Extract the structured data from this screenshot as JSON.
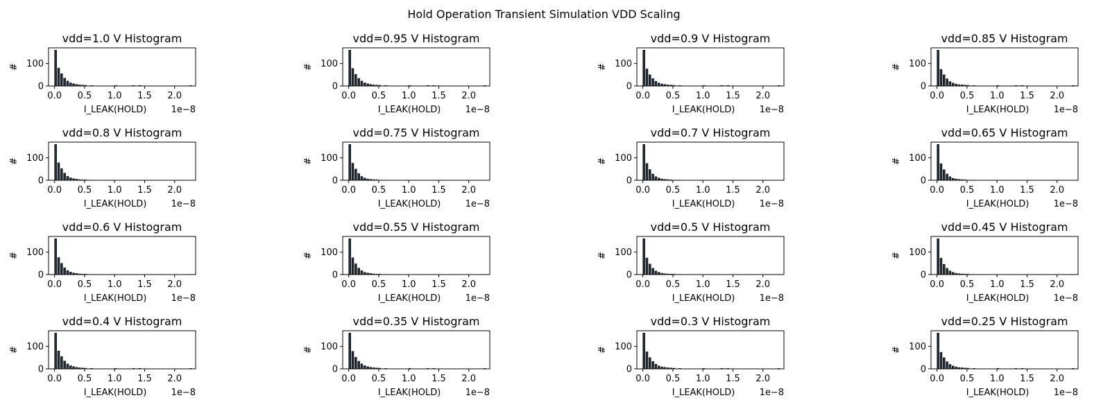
{
  "figure": {
    "title": "Hold Operation Transient Simulation VDD Scaling"
  },
  "colors": {
    "bar_fill": "#1f2a36",
    "bar_edge": "#000000",
    "axes": "#000000",
    "background": "#ffffff"
  },
  "chart_data": {
    "type": "bar",
    "histogram_bins_x": [
      0.0,
      0.05,
      0.1,
      0.15,
      0.2,
      0.25,
      0.3,
      0.35,
      0.4,
      0.45,
      0.5,
      0.6,
      1.0,
      1.3,
      1.4,
      2.25
    ],
    "xlabel": "I_LEAK(HOLD)",
    "ylabel": "#",
    "x_offset_label": "1e−8",
    "x_ticks": [
      "0.0",
      "0.5",
      "1.0",
      "1.5",
      "2.0"
    ],
    "x_tick_values": [
      0.0,
      0.5,
      1.0,
      1.5,
      2.0
    ],
    "y_ticks": [
      "0",
      "100"
    ],
    "y_tick_values": [
      0,
      100
    ],
    "xlim": [
      -0.1,
      2.35
    ],
    "ylim": [
      0,
      170
    ],
    "panels": [
      {
        "title": "vdd=1.0 V Histogram",
        "counts": [
          160,
          80,
          55,
          35,
          22,
          14,
          10,
          7,
          5,
          4,
          3,
          2,
          2,
          2,
          2,
          2
        ]
      },
      {
        "title": "vdd=0.95 V Histogram",
        "counts": [
          160,
          78,
          52,
          34,
          22,
          14,
          10,
          7,
          5,
          4,
          3,
          2,
          2,
          2,
          2,
          2
        ]
      },
      {
        "title": "vdd=0.9 V Histogram",
        "counts": [
          160,
          76,
          50,
          33,
          21,
          13,
          9,
          7,
          5,
          4,
          3,
          2,
          2,
          2,
          2,
          2
        ]
      },
      {
        "title": "vdd=0.85 V Histogram",
        "counts": [
          160,
          74,
          50,
          32,
          20,
          13,
          9,
          6,
          5,
          4,
          3,
          2,
          2,
          2,
          2,
          2
        ]
      },
      {
        "title": "vdd=0.8 V Histogram",
        "counts": [
          160,
          78,
          52,
          32,
          18,
          11,
          7,
          5,
          3,
          2,
          2,
          1,
          0,
          0,
          0,
          0
        ]
      },
      {
        "title": "vdd=0.75 V Histogram",
        "counts": [
          160,
          76,
          50,
          30,
          17,
          10,
          6,
          4,
          3,
          2,
          1,
          1,
          0,
          0,
          0,
          0
        ]
      },
      {
        "title": "vdd=0.7 V Histogram",
        "counts": [
          160,
          75,
          48,
          28,
          16,
          10,
          6,
          4,
          3,
          2,
          1,
          1,
          0,
          0,
          0,
          0
        ]
      },
      {
        "title": "vdd=0.65 V Histogram",
        "counts": [
          160,
          74,
          47,
          28,
          16,
          9,
          6,
          4,
          3,
          2,
          1,
          1,
          0,
          0,
          0,
          0
        ]
      },
      {
        "title": "vdd=0.6 V Histogram",
        "counts": [
          160,
          76,
          50,
          30,
          18,
          11,
          7,
          5,
          3,
          2,
          2,
          1,
          0,
          0,
          0,
          1
        ]
      },
      {
        "title": "vdd=0.55 V Histogram",
        "counts": [
          160,
          75,
          48,
          29,
          17,
          10,
          7,
          5,
          3,
          2,
          2,
          1,
          0,
          0,
          0,
          1
        ]
      },
      {
        "title": "vdd=0.5 V Histogram",
        "counts": [
          160,
          74,
          47,
          28,
          16,
          10,
          6,
          4,
          3,
          2,
          2,
          1,
          0,
          0,
          0,
          1
        ]
      },
      {
        "title": "vdd=0.45 V Histogram",
        "counts": [
          160,
          73,
          46,
          28,
          16,
          10,
          6,
          4,
          3,
          2,
          2,
          1,
          0,
          0,
          0,
          1
        ]
      },
      {
        "title": "vdd=0.4 V Histogram",
        "counts": [
          160,
          80,
          55,
          35,
          22,
          14,
          10,
          7,
          5,
          4,
          3,
          2,
          2,
          2,
          2,
          2
        ]
      },
      {
        "title": "vdd=0.35 V Histogram",
        "counts": [
          160,
          78,
          52,
          34,
          22,
          14,
          10,
          7,
          5,
          4,
          3,
          2,
          2,
          2,
          2,
          2
        ]
      },
      {
        "title": "vdd=0.3 V Histogram",
        "counts": [
          160,
          76,
          50,
          33,
          21,
          13,
          9,
          7,
          5,
          4,
          3,
          2,
          2,
          2,
          2,
          2
        ]
      },
      {
        "title": "vdd=0.25 V Histogram",
        "counts": [
          160,
          74,
          50,
          32,
          20,
          13,
          9,
          6,
          5,
          4,
          3,
          2,
          2,
          2,
          2,
          2
        ]
      }
    ]
  }
}
